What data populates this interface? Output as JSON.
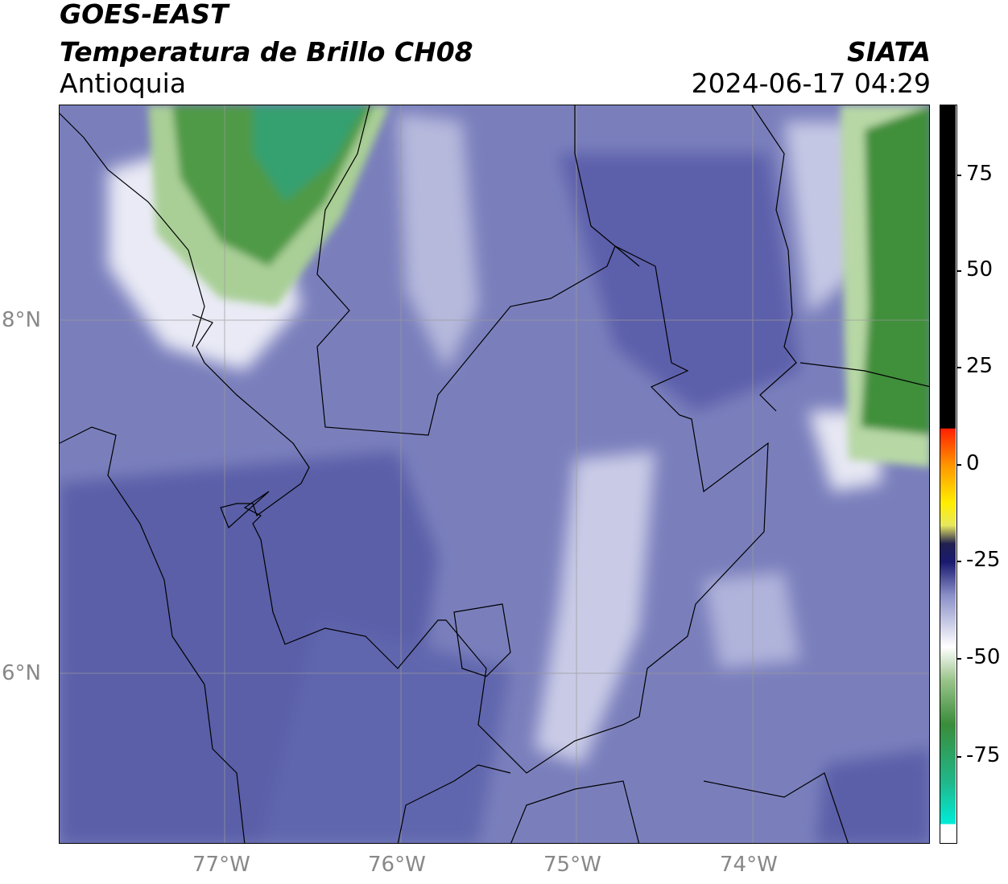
{
  "header": {
    "satellite": "GOES-EAST",
    "product": "Temperatura de Brillo CH08",
    "region": "Antioquia",
    "organization": "SIATA",
    "datetime": "2024-06-17 04:29"
  },
  "map": {
    "lat_labels": [
      "8°N",
      "6°N"
    ],
    "lon_labels": [
      "77°W",
      "76°W",
      "75°W",
      "74°W"
    ],
    "colors": {
      "cold_blue": "#5a5fa8",
      "mid_blue": "#8a8fc4",
      "pale": "#d8dbee",
      "white": "#f4f5fa",
      "green_light": "#a9cf96",
      "green": "#3f8f3a",
      "teal": "#33b07f",
      "border": "#000000",
      "grid": "#9a9a9a"
    }
  },
  "colorbar": {
    "ticks": [
      "75",
      "50",
      "25",
      "0",
      "-25",
      "-50",
      "-75"
    ],
    "colors": {
      "top": "#000000",
      "red": "#ff2000",
      "orange": "#ff9900",
      "yellow": "#ffee00",
      "navy": "#1a1a70",
      "lavender": "#8a8fc8",
      "white": "#ffffff",
      "green": "#3a8c3a",
      "cyan": "#00ecd8"
    }
  }
}
